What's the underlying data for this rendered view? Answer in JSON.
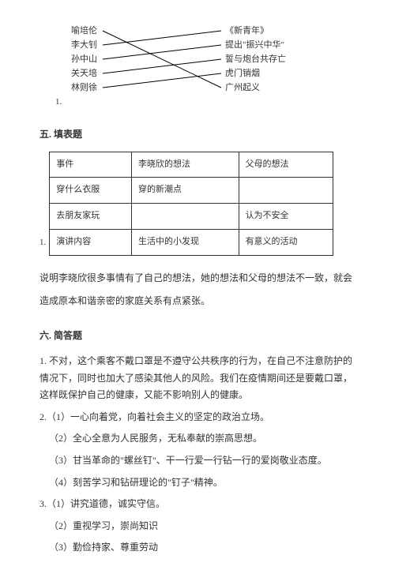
{
  "matching": {
    "number": "1.",
    "left": [
      "喻培伦",
      "李大钊",
      "孙中山",
      "关天培",
      "林则徐"
    ],
    "right": [
      "《新青年》",
      "提出\"振兴中华\"",
      "誓与炮台共存亡",
      "虎门销烟",
      "广州起义"
    ],
    "lines": [
      {
        "from": 0,
        "to": 4
      },
      {
        "from": 1,
        "to": 0
      },
      {
        "from": 2,
        "to": 1
      },
      {
        "from": 3,
        "to": 2
      },
      {
        "from": 4,
        "to": 3
      }
    ],
    "style": {
      "stroke": "#000000",
      "width": 1
    }
  },
  "section5": {
    "title": "五. 填表题",
    "number": "1.",
    "columns": [
      "事件",
      "李晓欣的想法",
      "父母的想法"
    ],
    "rows": [
      [
        "穿什么衣服",
        "穿的新潮点",
        ""
      ],
      [
        "去朋友家玩",
        "",
        "认为不安全"
      ],
      [
        "演讲内容",
        "生活中的小发现",
        "有意义的活动"
      ]
    ],
    "note": "说明李晓欣很多事情有了自己的想法，她的想法和父母的想法不一致，就会造成原本和谐亲密的家庭关系有点紧张。"
  },
  "section6": {
    "title": "六. 简答题",
    "items": [
      "1. 不对，这个乘客不戴口罩是不遵守公共秩序的行为，在自己不注意防护的情况下，同时也加大了感染其他人的风险。我们在疫情期间还是要戴口罩，这样既保护自己的健康，又能不影响别人的健康。",
      "2.（1）一心向着党，向着社会主义的坚定的政治立场。",
      "（2）全心全意为人民服务，无私奉献的崇高思想。",
      "（3）甘当革命的\"螺丝钉\"、干一行爱一行钻一行的爱岗敬业态度。",
      "（4）刻苦学习和钻研理论的\"钉子\"精神。",
      "3.（1）讲究道德，诚实守信。",
      "（2）重视学习，崇尚知识",
      "（3）勤俭持家、尊重劳动"
    ]
  }
}
